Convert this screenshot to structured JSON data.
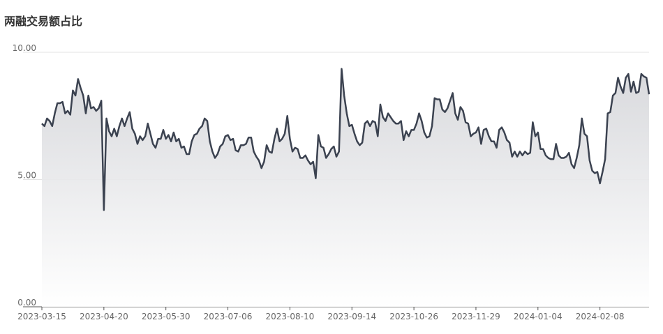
{
  "chart_data": {
    "type": "line",
    "title": "两融交易额占比",
    "categories": [
      "2023-03-15",
      null,
      null,
      null,
      null,
      null,
      null,
      null,
      null,
      null,
      null,
      null,
      null,
      null,
      null,
      null,
      null,
      null,
      null,
      null,
      null,
      null,
      null,
      null,
      "2023-04-20",
      null,
      null,
      null,
      null,
      null,
      null,
      null,
      null,
      null,
      null,
      null,
      null,
      null,
      null,
      null,
      null,
      null,
      null,
      null,
      null,
      null,
      null,
      null,
      "2023-05-30",
      null,
      null,
      null,
      null,
      null,
      null,
      null,
      null,
      null,
      null,
      null,
      null,
      null,
      null,
      null,
      null,
      null,
      null,
      null,
      null,
      null,
      null,
      null,
      "2023-07-06",
      null,
      null,
      null,
      null,
      null,
      null,
      null,
      null,
      null,
      null,
      null,
      null,
      null,
      null,
      null,
      null,
      null,
      null,
      null,
      null,
      null,
      null,
      null,
      "2023-08-10",
      null,
      null,
      null,
      null,
      null,
      null,
      null,
      null,
      null,
      null,
      null,
      null,
      null,
      null,
      null,
      null,
      null,
      null,
      null,
      null,
      null,
      null,
      null,
      "2023-09-14",
      null,
      null,
      null,
      null,
      null,
      null,
      null,
      null,
      null,
      null,
      null,
      null,
      null,
      null,
      null,
      null,
      null,
      null,
      null,
      null,
      null,
      null,
      null,
      "2023-10-26",
      null,
      null,
      null,
      null,
      null,
      null,
      null,
      null,
      null,
      null,
      null,
      null,
      null,
      null,
      null,
      null,
      null,
      null,
      null,
      null,
      null,
      null,
      null,
      "2023-11-29",
      null,
      null,
      null,
      null,
      null,
      null,
      null,
      null,
      null,
      null,
      null,
      null,
      null,
      null,
      null,
      null,
      null,
      null,
      null,
      null,
      null,
      null,
      null,
      "2024-01-04",
      null,
      null,
      null,
      null,
      null,
      null,
      null,
      null,
      null,
      null,
      null,
      null,
      null,
      null,
      null,
      null,
      null,
      null,
      null,
      null,
      null,
      null,
      null,
      "2024-02-08",
      null,
      null,
      null,
      null,
      null,
      null,
      null,
      null,
      null,
      null,
      null,
      null,
      null,
      null,
      null,
      null,
      null,
      null,
      null
    ],
    "values": [
      7.2,
      7.1,
      7.4,
      7.3,
      7.1,
      7.6,
      8.0,
      8.0,
      8.05,
      7.6,
      7.7,
      7.55,
      8.5,
      8.3,
      8.95,
      8.6,
      8.3,
      7.6,
      8.3,
      7.8,
      7.85,
      7.7,
      7.8,
      8.1,
      3.8,
      7.4,
      6.9,
      6.7,
      7.0,
      6.7,
      7.1,
      7.4,
      7.1,
      7.4,
      7.65,
      7.0,
      6.8,
      6.4,
      6.7,
      6.55,
      6.7,
      7.2,
      6.8,
      6.4,
      6.25,
      6.6,
      6.6,
      6.95,
      6.6,
      6.75,
      6.5,
      6.85,
      6.5,
      6.6,
      6.25,
      6.3,
      6.0,
      6.0,
      6.5,
      6.75,
      6.8,
      7.0,
      7.1,
      7.4,
      7.3,
      6.5,
      6.1,
      5.85,
      6.0,
      6.3,
      6.4,
      6.7,
      6.75,
      6.55,
      6.6,
      6.15,
      6.1,
      6.35,
      6.35,
      6.4,
      6.65,
      6.65,
      6.1,
      5.9,
      5.75,
      5.45,
      5.7,
      6.35,
      6.1,
      6.05,
      6.6,
      7.0,
      6.5,
      6.6,
      6.8,
      7.5,
      6.6,
      6.1,
      6.25,
      6.2,
      5.85,
      5.85,
      5.95,
      5.75,
      5.6,
      5.7,
      5.05,
      6.75,
      6.3,
      6.25,
      5.85,
      6.0,
      6.2,
      6.3,
      5.9,
      6.1,
      9.35,
      8.3,
      7.6,
      7.1,
      7.15,
      6.8,
      6.5,
      6.35,
      6.45,
      7.2,
      7.3,
      7.1,
      7.3,
      7.25,
      6.7,
      7.95,
      7.45,
      7.3,
      7.6,
      7.45,
      7.3,
      7.2,
      7.2,
      7.3,
      6.55,
      6.9,
      6.7,
      6.95,
      6.95,
      7.2,
      7.6,
      7.3,
      6.85,
      6.65,
      6.7,
      7.1,
      8.2,
      8.15,
      8.15,
      7.75,
      7.65,
      7.8,
      8.1,
      8.4,
      7.6,
      7.35,
      7.85,
      7.7,
      7.25,
      7.2,
      6.7,
      6.8,
      6.85,
      7.05,
      6.4,
      6.95,
      7.0,
      6.7,
      6.5,
      6.5,
      6.25,
      6.95,
      7.05,
      6.85,
      6.55,
      6.45,
      5.9,
      6.1,
      5.9,
      6.1,
      5.95,
      6.1,
      6.0,
      6.05,
      7.25,
      6.7,
      6.85,
      6.2,
      6.2,
      5.95,
      5.85,
      5.8,
      5.8,
      6.4,
      5.95,
      5.85,
      5.85,
      5.9,
      6.05,
      5.6,
      5.45,
      5.85,
      6.35,
      7.4,
      6.8,
      6.7,
      5.75,
      5.35,
      5.25,
      5.3,
      4.85,
      5.3,
      5.8,
      7.6,
      7.65,
      8.3,
      8.4,
      9.0,
      8.65,
      8.4,
      9.0,
      9.15,
      8.45,
      8.85,
      8.4,
      8.45,
      9.15,
      9.05,
      9.0,
      8.35
    ],
    "color": "#3b4250",
    "ylim": [
      0,
      10
    ],
    "yticks": [
      {
        "value": 0,
        "label": "0.00"
      },
      {
        "value": 5,
        "label": "5.00"
      },
      {
        "value": 10,
        "label": "10.00"
      }
    ],
    "grid": true
  }
}
